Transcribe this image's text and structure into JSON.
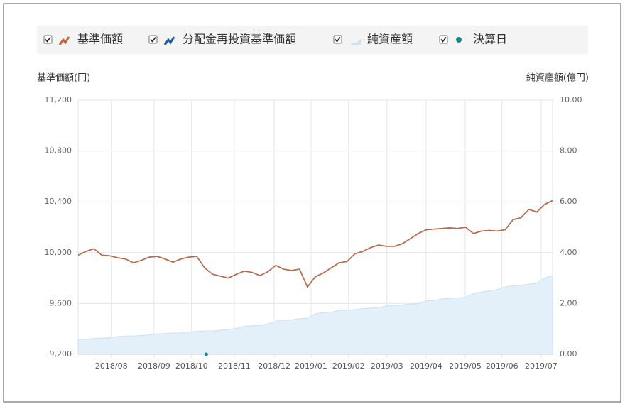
{
  "chart_data": {
    "type": "line",
    "legend": [
      "基準価額",
      "分配金再投資基準価額",
      "純資産額",
      "決算日"
    ],
    "ylabel": "基準価額(円)",
    "y2label": "純資産額(億円)",
    "xlim": [
      0,
      120
    ],
    "xticks": [
      {
        "value": 8.4,
        "label": "2018/08"
      },
      {
        "value": 19.2,
        "label": "2018/09"
      },
      {
        "value": 28.7,
        "label": "2018/10"
      },
      {
        "value": 39.5,
        "label": "2018/11"
      },
      {
        "value": 49.6,
        "label": "2018/12"
      },
      {
        "value": 58.9,
        "label": "2019/01"
      },
      {
        "value": 68.4,
        "label": "2019/02"
      },
      {
        "value": 78.1,
        "label": "2019/03"
      },
      {
        "value": 88,
        "label": "2019/04"
      },
      {
        "value": 97.9,
        "label": "2019/05"
      },
      {
        "value": 107.2,
        "label": "2019/06"
      },
      {
        "value": 117.1,
        "label": "2019/07"
      }
    ],
    "ylim": [
      9200,
      11200
    ],
    "yticks": [
      {
        "value": 9200,
        "label": "9,200"
      },
      {
        "value": 9600,
        "label": "9,600"
      },
      {
        "value": 10000,
        "label": "10,000"
      },
      {
        "value": 10400,
        "label": "10,400"
      },
      {
        "value": 10800,
        "label": "10,800"
      },
      {
        "value": 11200,
        "label": "11,200"
      }
    ],
    "y2lim": [
      0,
      10
    ],
    "y2ticks": [
      {
        "value": 0,
        "label": "0.00"
      },
      {
        "value": 2,
        "label": "2.00"
      },
      {
        "value": 4,
        "label": "4.00"
      },
      {
        "value": 6,
        "label": "6.00"
      },
      {
        "value": 8,
        "label": "8.00"
      },
      {
        "value": 10,
        "label": "10.00"
      }
    ],
    "grid": true,
    "x": [
      0,
      2,
      4,
      6,
      8,
      10,
      12,
      14,
      16,
      18,
      20,
      22,
      24,
      26,
      28,
      30,
      32,
      34,
      36,
      38,
      40,
      42,
      44,
      46,
      48,
      50,
      52,
      54,
      56,
      58,
      60,
      62,
      64,
      66,
      68,
      70,
      72,
      74,
      76,
      78,
      80,
      82,
      84,
      86,
      88,
      90,
      92,
      94,
      96,
      98,
      100,
      102,
      104,
      106,
      108,
      110,
      112,
      114,
      116,
      118,
      120
    ],
    "series": [
      {
        "name": "分配金再投資基準価額",
        "color": "#1f5f9e",
        "values": [
          9980,
          10010,
          10030,
          9980,
          9975,
          9960,
          9950,
          9920,
          9940,
          9965,
          9970,
          9950,
          9925,
          9950,
          9965,
          9970,
          9880,
          9830,
          9815,
          9800,
          9830,
          9855,
          9845,
          9820,
          9850,
          9900,
          9870,
          9860,
          9870,
          9730,
          9810,
          9840,
          9880,
          9920,
          9930,
          9990,
          10010,
          10040,
          10060,
          10050,
          10050,
          10070,
          10110,
          10150,
          10180,
          10185,
          10190,
          10195,
          10190,
          10200,
          10150,
          10170,
          10175,
          10170,
          10180,
          10260,
          10275,
          10340,
          10320,
          10380,
          10410
        ]
      },
      {
        "name": "基準価額",
        "color": "#c8653a",
        "values": [
          9980,
          10010,
          10030,
          9980,
          9975,
          9960,
          9950,
          9920,
          9940,
          9965,
          9970,
          9950,
          9925,
          9950,
          9965,
          9970,
          9880,
          9830,
          9815,
          9800,
          9830,
          9855,
          9845,
          9820,
          9850,
          9900,
          9870,
          9860,
          9870,
          9730,
          9810,
          9840,
          9880,
          9920,
          9930,
          9990,
          10010,
          10040,
          10060,
          10050,
          10050,
          10070,
          10110,
          10150,
          10180,
          10185,
          10190,
          10195,
          10190,
          10200,
          10150,
          10170,
          10175,
          10170,
          10180,
          10260,
          10275,
          10340,
          10320,
          10380,
          10410
        ]
      },
      {
        "name": "純資産額",
        "color": "#e3f0fa",
        "axis": "y2",
        "values": [
          0.58,
          0.6,
          0.62,
          0.64,
          0.66,
          0.7,
          0.72,
          0.72,
          0.74,
          0.76,
          0.8,
          0.82,
          0.84,
          0.84,
          0.88,
          0.9,
          0.92,
          0.92,
          0.95,
          0.98,
          1.02,
          1.1,
          1.12,
          1.14,
          1.2,
          1.3,
          1.34,
          1.36,
          1.4,
          1.42,
          1.6,
          1.64,
          1.66,
          1.72,
          1.74,
          1.76,
          1.8,
          1.82,
          1.84,
          1.9,
          1.92,
          1.94,
          1.98,
          2.0,
          2.1,
          2.12,
          2.18,
          2.2,
          2.22,
          2.24,
          2.4,
          2.45,
          2.5,
          2.55,
          2.65,
          2.7,
          2.72,
          2.76,
          2.8,
          3.0,
          3.1
        ]
      }
    ],
    "settlement": {
      "color": "#138a8a",
      "x": [
        32.4
      ]
    }
  }
}
